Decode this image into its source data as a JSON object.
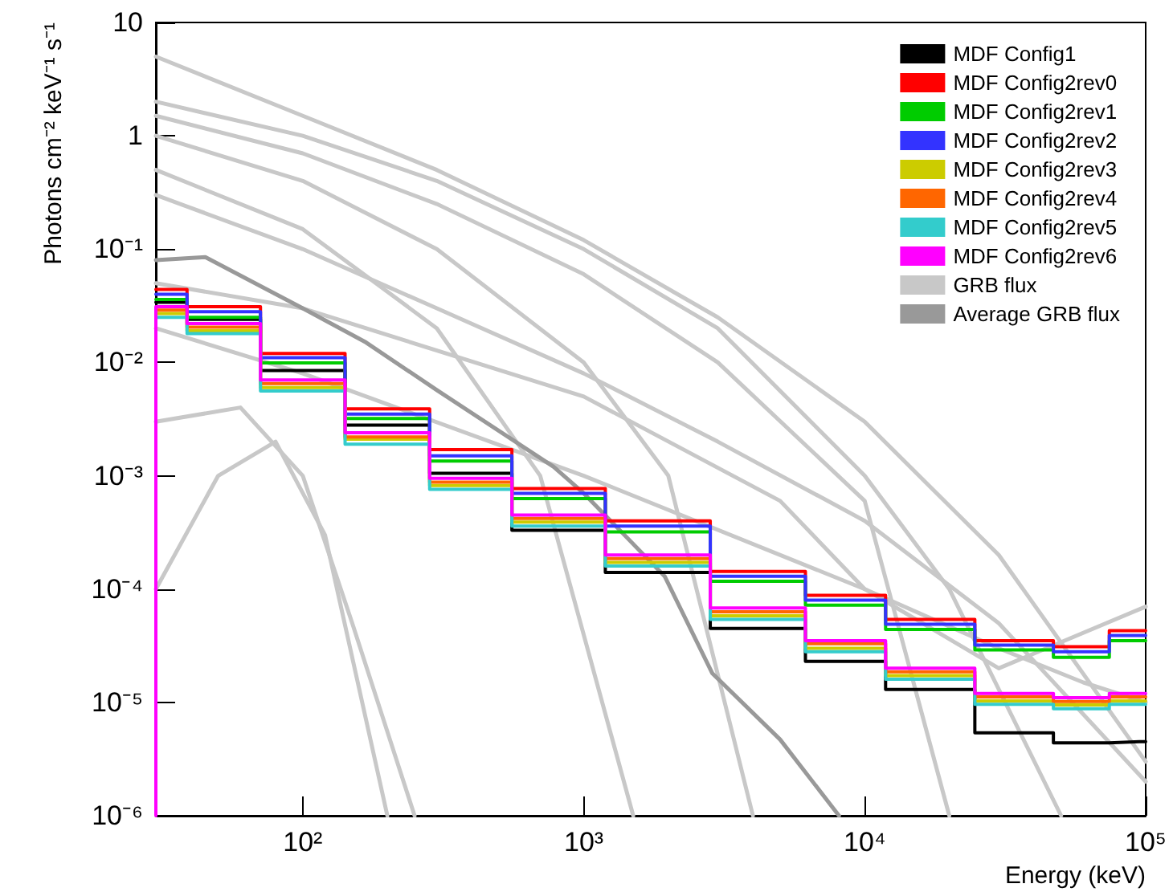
{
  "chart_data": {
    "type": "line",
    "xlabel": "Energy (keV)",
    "ylabel": "Photons cm⁻² keV⁻¹ s⁻¹",
    "log": "xy",
    "legend": "top right",
    "line_style": "solid",
    "xlim": [
      30,
      100000
    ],
    "ylim": [
      1e-06,
      10
    ],
    "xticks": [
      {
        "value": 100,
        "label": "10²"
      },
      {
        "value": 1000,
        "label": "10³"
      },
      {
        "value": 10000,
        "label": "10⁴"
      },
      {
        "value": 100000,
        "label": "10⁵"
      }
    ],
    "yticks": [
      {
        "value": 1e-06,
        "label": "10⁻⁶"
      },
      {
        "value": 1e-05,
        "label": "10⁻⁵"
      },
      {
        "value": 0.0001,
        "label": "10⁻⁴"
      },
      {
        "value": 0.001,
        "label": "10⁻³"
      },
      {
        "value": 0.01,
        "label": "10⁻²"
      },
      {
        "value": 0.1,
        "label": "10⁻¹"
      },
      1,
      10
    ],
    "series": [
      {
        "name": "MDF Config1",
        "type": "step",
        "color": "#000000",
        "x": [
          30,
          50,
          100,
          200,
          400,
          770,
          1850,
          4300,
          8800,
          16000,
          38000,
          58000,
          95000,
          100000
        ],
        "values": [
          0.034,
          0.024,
          0.0085,
          0.0028,
          0.00105,
          0.00033,
          0.00014,
          4.5e-05,
          2.3e-05,
          1.3e-05,
          5.4e-06,
          4.4e-06,
          4.5e-06,
          4.5e-06
        ]
      },
      {
        "name": "MDF Config2rev0",
        "type": "step",
        "color": "#ff0000",
        "x": [
          30,
          50,
          100,
          200,
          400,
          770,
          1850,
          4300,
          8800,
          16000,
          38000,
          58000,
          95000,
          100000
        ],
        "values": [
          0.044,
          0.031,
          0.012,
          0.0039,
          0.0017,
          0.00077,
          0.0004,
          0.000143,
          8.8e-05,
          5.4e-05,
          3.5e-05,
          3.1e-05,
          4.3e-05,
          4.3e-05
        ]
      },
      {
        "name": "MDF Config2rev1",
        "type": "step",
        "color": "#00cc00",
        "x": [
          30,
          50,
          100,
          200,
          400,
          770,
          1850,
          4300,
          8800,
          16000,
          38000,
          58000,
          95000,
          100000
        ],
        "values": [
          0.036,
          0.025,
          0.0099,
          0.0032,
          0.00135,
          0.00063,
          0.00032,
          0.000117,
          7.2e-05,
          4.4e-05,
          2.9e-05,
          2.5e-05,
          3.5e-05,
          3.5e-05
        ]
      },
      {
        "name": "MDF Config2rev2",
        "type": "step",
        "color": "#3333ff",
        "x": [
          30,
          50,
          100,
          200,
          400,
          770,
          1850,
          4300,
          8800,
          16000,
          38000,
          58000,
          95000,
          100000
        ],
        "values": [
          0.04,
          0.028,
          0.011,
          0.0035,
          0.0015,
          0.0007,
          0.00036,
          0.00013,
          8e-05,
          4.9e-05,
          3.2e-05,
          2.8e-05,
          3.9e-05,
          3.9e-05
        ]
      },
      {
        "name": "MDF Config2rev3",
        "type": "step",
        "color": "#cccc00",
        "x": [
          30,
          50,
          100,
          200,
          400,
          770,
          1850,
          4300,
          8800,
          16000,
          38000,
          58000,
          95000,
          100000
        ],
        "values": [
          0.027,
          0.019,
          0.006,
          0.0021,
          0.00082,
          0.00039,
          0.000172,
          5.8e-05,
          3e-05,
          1.72e-05,
          1.03e-05,
          9.5e-06,
          1.03e-05,
          1.03e-05
        ]
      },
      {
        "name": "MDF Config2rev4",
        "type": "step",
        "color": "#ff6600",
        "x": [
          30,
          50,
          100,
          200,
          400,
          770,
          1850,
          4300,
          8800,
          16000,
          38000,
          58000,
          95000,
          100000
        ],
        "values": [
          0.029,
          0.0205,
          0.0065,
          0.0022,
          0.00088,
          0.00042,
          0.000186,
          6.3e-05,
          3.3e-05,
          1.86e-05,
          1.12e-05,
          1.02e-05,
          1.12e-05,
          1.12e-05
        ]
      },
      {
        "name": "MDF Config2rev5",
        "type": "step",
        "color": "#33cccc",
        "x": [
          30,
          50,
          100,
          200,
          400,
          770,
          1850,
          4300,
          8800,
          16000,
          38000,
          58000,
          95000,
          100000
        ],
        "values": [
          0.025,
          0.018,
          0.0056,
          0.0019,
          0.00076,
          0.00036,
          0.00016,
          5.4e-05,
          2.8e-05,
          1.6e-05,
          9.6e-06,
          8.8e-06,
          9.6e-06,
          9.6e-06
        ]
      },
      {
        "name": "MDF Config2rev6",
        "type": "step",
        "color": "#ff00ff",
        "x": [
          30,
          30,
          50,
          100,
          200,
          400,
          770,
          1850,
          4300,
          8800,
          16000,
          38000,
          58000,
          95000,
          100000
        ],
        "values": [
          1e-06,
          0.031,
          0.022,
          0.007,
          0.0024,
          0.00095,
          0.00045,
          0.0002,
          6.8e-05,
          3.5e-05,
          2e-05,
          1.2e-05,
          1.1e-05,
          1.2e-05,
          1.2e-05
        ]
      },
      {
        "name": "GRB flux",
        "color": "#c8c8c8",
        "x": [
          30,
          100,
          300,
          1000,
          3000,
          10000,
          30000,
          100000
        ],
        "values": [
          5,
          1.5,
          0.5,
          0.12,
          0.025,
          0.003,
          0.0002,
          3e-06
        ]
      },
      {
        "name": "Average GRB flux",
        "color": "#999999",
        "x": [
          30,
          45,
          100,
          168,
          300,
          781,
          1000,
          1940,
          2870,
          5000,
          8100
        ],
        "values": [
          0.08,
          0.085,
          0.03,
          0.015,
          0.0057,
          0.0012,
          0.0007,
          0.00013,
          1.8e-05,
          4.7e-06,
          1e-06
        ]
      },
      {
        "color": "#c8c8c8",
        "x": [
          30,
          100,
          300,
          1000,
          3000,
          10000,
          20000
        ],
        "values": [
          1.5,
          0.7,
          0.25,
          0.06,
          0.01,
          0.0006,
          1e-06
        ]
      },
      {
        "color": "#c8c8c8",
        "x": [
          30,
          100,
          300,
          1000,
          2000,
          4000
        ],
        "values": [
          1,
          0.4,
          0.1,
          0.01,
          0.001,
          1e-06
        ]
      },
      {
        "color": "#c8c8c8",
        "x": [
          30,
          100,
          300,
          700,
          1500
        ],
        "values": [
          0.5,
          0.15,
          0.02,
          0.001,
          1e-06
        ]
      },
      {
        "color": "#c8c8c8",
        "x": [
          30,
          100,
          300,
          1000,
          3000,
          10000,
          30000,
          100000
        ],
        "values": [
          0.3,
          0.1,
          0.03,
          0.008,
          0.002,
          0.0004,
          5e-05,
          2e-06
        ]
      },
      {
        "color": "#c8c8c8",
        "x": [
          30,
          60,
          100,
          150,
          250
        ],
        "values": [
          0.003,
          0.004,
          0.001,
          5e-05,
          1e-06
        ]
      },
      {
        "color": "#c8c8c8",
        "x": [
          30,
          50,
          80,
          120,
          200
        ],
        "values": [
          0.0001,
          0.001,
          0.002,
          0.0003,
          1e-06
        ]
      },
      {
        "color": "#c8c8c8",
        "x": [
          30,
          100,
          1000,
          10000,
          30000,
          60000,
          100000
        ],
        "values": [
          0.02,
          0.008,
          0.001,
          0.0001,
          3e-05,
          1.5e-05,
          1e-05
        ]
      },
      {
        "color": "#c8c8c8",
        "x": [
          30,
          100,
          300,
          1000,
          3000,
          10000,
          20000,
          50000
        ],
        "values": [
          2,
          1,
          0.4,
          0.1,
          0.02,
          0.001,
          0.0001,
          1e-06
        ]
      },
      {
        "color": "#c8c8c8",
        "x": [
          30,
          100,
          1000,
          5000,
          10000,
          30000,
          100000
        ],
        "values": [
          0.05,
          0.03,
          0.005,
          0.0006,
          0.0001,
          2e-05,
          7e-05
        ]
      }
    ]
  }
}
